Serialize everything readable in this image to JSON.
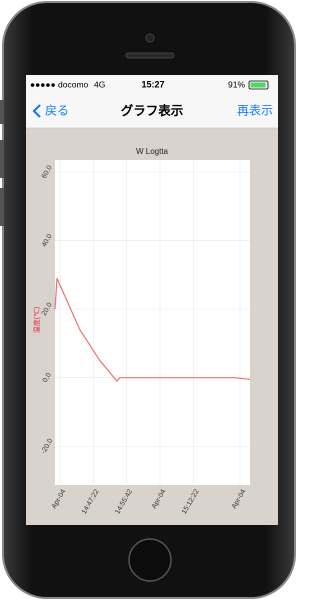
{
  "status_bar": {
    "carrier": "●●●●● docomo",
    "network": "4G",
    "time": "15:27",
    "battery": "91%"
  },
  "nav_bar": {
    "back": "戻る",
    "title": "グラフ表示",
    "action": "再表示"
  },
  "chart_data": {
    "type": "line",
    "title": "W Logtta",
    "y_label": "温度(℃)",
    "x": [
      52667,
      52697,
      52742,
      53040,
      53340,
      53595,
      53640,
      54832,
      55355,
      55592
    ],
    "values": [
      20,
      29,
      27,
      14,
      5,
      -1,
      0,
      0,
      0,
      -0.5
    ],
    "color": "#f07070",
    "xlim": [
      52667,
      55592
    ],
    "xticks": [
      {
        "value": 52742,
        "label": "Apr-04"
      },
      {
        "value": 53242,
        "label": "14:47:22"
      },
      {
        "value": 53742,
        "label": "14:55:42"
      },
      {
        "value": 54242,
        "label": "Apr-04"
      },
      {
        "value": 54742,
        "label": "15:12:22"
      },
      {
        "value": 55442,
        "label": "Apr-04"
      }
    ],
    "ylim": [
      -31.3,
      63.5
    ],
    "yticks": [
      {
        "value": 60,
        "label": "60.0"
      },
      {
        "value": 40,
        "label": "40.0"
      },
      {
        "value": 20,
        "label": "20.0"
      },
      {
        "value": 0,
        "label": "0.0"
      },
      {
        "value": -20,
        "label": "-20.0"
      }
    ],
    "grid": true
  }
}
